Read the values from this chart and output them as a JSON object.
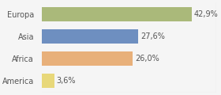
{
  "categories": [
    "America",
    "Africa",
    "Asia",
    "Europa"
  ],
  "values": [
    3.6,
    26.0,
    27.6,
    42.9
  ],
  "labels": [
    "3,6%",
    "26,0%",
    "27,6%",
    "42,9%"
  ],
  "bar_colors": [
    "#e8d87a",
    "#e8b07a",
    "#6e8fc0",
    "#aab97a"
  ],
  "background_color": "#f5f5f5",
  "xlim": [
    0,
    50
  ],
  "bar_height": 0.62,
  "label_fontsize": 7.0,
  "tick_fontsize": 7.0
}
